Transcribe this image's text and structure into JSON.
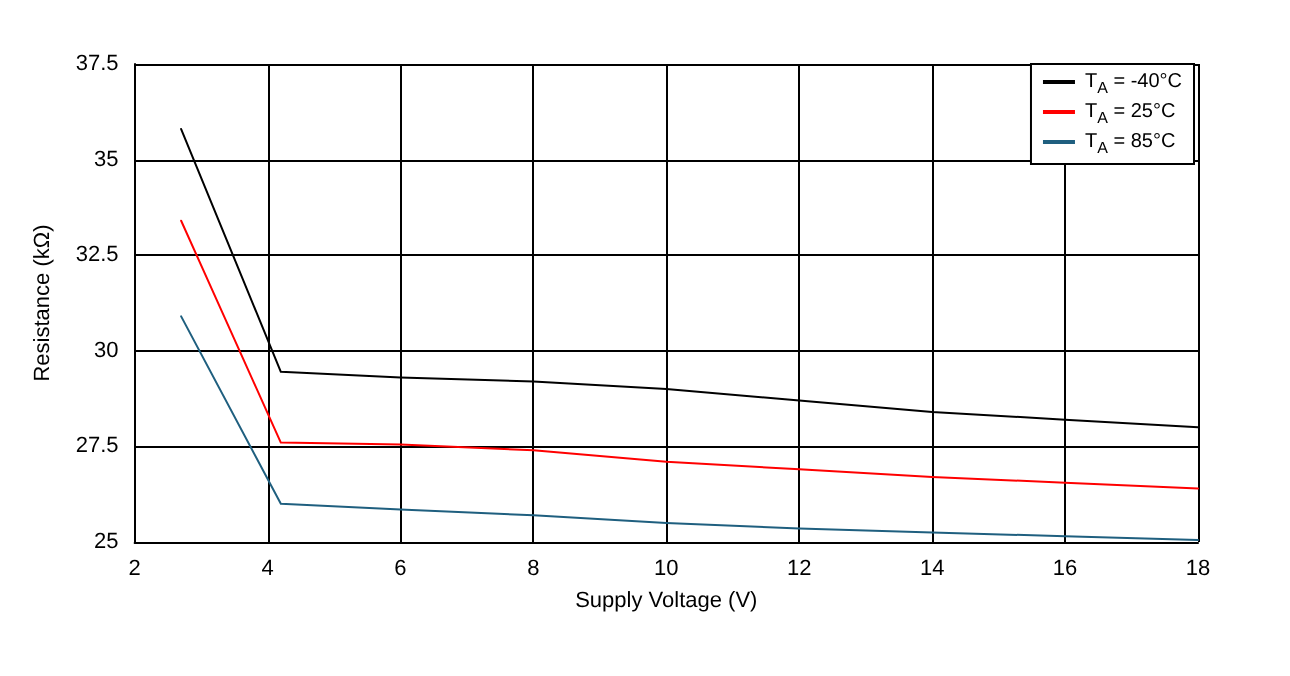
{
  "chart_data": {
    "type": "line",
    "xlabel": "Supply Voltage (V)",
    "ylabel": "Resistance (kΩ)",
    "x": [
      2.7,
      4.2,
      6,
      8,
      10,
      12,
      14,
      16,
      18
    ],
    "series": [
      {
        "name": "T$_{A}$ = -40°C",
        "color": "#000000",
        "values": [
          35.8,
          29.45,
          29.3,
          29.2,
          29.0,
          28.7,
          28.4,
          28.2,
          28.0
        ]
      },
      {
        "name": "T$_{A}$ = 25°C",
        "color": "#ff0000",
        "values": [
          33.4,
          27.6,
          27.55,
          27.4,
          27.1,
          26.9,
          26.7,
          26.55,
          26.4
        ]
      },
      {
        "name": "T$_{A}$ = 85°C",
        "color": "#1f5f7f",
        "values": [
          30.9,
          26.0,
          25.85,
          25.7,
          25.5,
          25.35,
          25.25,
          25.15,
          25.05
        ]
      }
    ],
    "xlim": [
      2,
      18
    ],
    "xticks": [
      2,
      4,
      6,
      8,
      10,
      12,
      14,
      16,
      18
    ],
    "ylim": [
      25,
      37.5
    ],
    "yticks": [
      25,
      27.5,
      30,
      32.5,
      35,
      37.5
    ],
    "grid": true,
    "legend": "top right",
    "marker": "none",
    "line_style": "solid"
  }
}
